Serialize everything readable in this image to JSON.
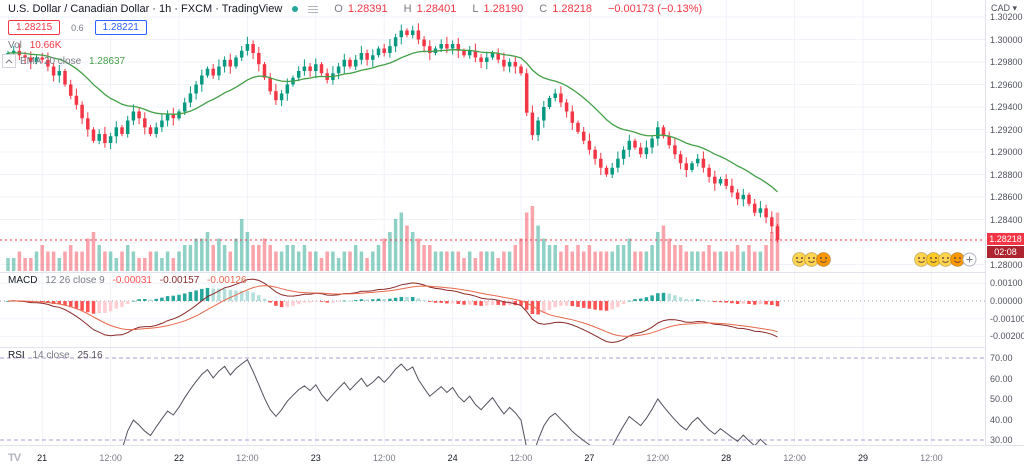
{
  "header": {
    "title": "U.S. Dollar / Canadian Dollar · 1h · FXCM · TradingView",
    "ohlc": {
      "items": [
        {
          "k": "O",
          "v": "1.28391"
        },
        {
          "k": "H",
          "v": "1.28401"
        },
        {
          "k": "L",
          "v": "1.28190"
        },
        {
          "k": "C",
          "v": "1.28218"
        }
      ],
      "change": "−0.00173 (−0.13%)"
    },
    "sell": "1.28215",
    "spread": "0.6",
    "buy": "1.28221",
    "vol_label": "Vol",
    "vol_value": "10.66K",
    "ema_label": "EMA 20 close",
    "ema_value": "1.28637"
  },
  "macd_legend": {
    "label": "MACD",
    "params": "12 26 close 9",
    "hist": "-0.00031",
    "macd": "-0.00157",
    "signal": "-0.00126"
  },
  "rsi_legend": {
    "label": "RSI",
    "params": "14 close",
    "value": "25.16"
  },
  "axis": {
    "currency": "CAD",
    "price_ticks": [
      {
        "p": 1.302,
        "label": "1.30200"
      },
      {
        "p": 1.3,
        "label": "1.30000"
      },
      {
        "p": 1.298,
        "label": "1.29800"
      },
      {
        "p": 1.296,
        "label": "1.29600"
      },
      {
        "p": 1.294,
        "label": "1.29400"
      },
      {
        "p": 1.292,
        "label": "1.29200"
      },
      {
        "p": 1.29,
        "label": "1.29000"
      },
      {
        "p": 1.288,
        "label": "1.28800"
      },
      {
        "p": 1.286,
        "label": "1.28600"
      },
      {
        "p": 1.284,
        "label": "1.28400"
      },
      {
        "p": 1.282,
        "label": ""
      },
      {
        "p": 1.28,
        "label": "1.28000"
      }
    ],
    "price_badge": {
      "value": "1.28218",
      "countdown": "02:08"
    },
    "macd_ticks": [
      {
        "v": 0.001,
        "label": "0.00100"
      },
      {
        "v": 0.0,
        "label": "0.00000"
      },
      {
        "v": -0.001,
        "label": "-0.00100"
      },
      {
        "v": -0.002,
        "label": "-0.00200"
      }
    ],
    "rsi_ticks": [
      {
        "v": 70,
        "label": "70.00"
      },
      {
        "v": 60,
        "label": "60.00"
      },
      {
        "v": 50,
        "label": "50.00"
      },
      {
        "v": 40,
        "label": "40.00"
      },
      {
        "v": 30,
        "label": "30.00"
      }
    ],
    "time_ticks": [
      {
        "label": "21",
        "hour": 6,
        "major": true
      },
      {
        "label": "12:00",
        "hour": 18,
        "major": false
      },
      {
        "label": "22",
        "hour": 30,
        "major": true
      },
      {
        "label": "12:00",
        "hour": 42,
        "major": false
      },
      {
        "label": "23",
        "hour": 54,
        "major": true
      },
      {
        "label": "12:00",
        "hour": 66,
        "major": false
      },
      {
        "label": "24",
        "hour": 78,
        "major": true
      },
      {
        "label": "12:00",
        "hour": 90,
        "major": false
      },
      {
        "label": "27",
        "hour": 102,
        "major": true
      },
      {
        "label": "12:00",
        "hour": 114,
        "major": false
      },
      {
        "label": "28",
        "hour": 126,
        "major": true
      },
      {
        "label": "12:00",
        "hour": 138,
        "major": false
      },
      {
        "label": "29",
        "hour": 150,
        "major": true
      },
      {
        "label": "12:00",
        "hour": 162,
        "major": false
      }
    ]
  },
  "chart_data": {
    "type": "candlestick",
    "symbol": "USD/CAD",
    "interval": "1h",
    "y_axis_range": [
      1.28,
      1.303
    ],
    "first_open": 1.2986,
    "closes": [
      1.2988,
      1.299,
      1.2986,
      1.2984,
      1.298,
      1.2984,
      1.2982,
      1.2976,
      1.2968,
      1.2972,
      1.296,
      1.295,
      1.2942,
      1.293,
      1.292,
      1.291,
      1.2916,
      1.2908,
      1.2914,
      1.2922,
      1.2916,
      1.2928,
      1.2936,
      1.293,
      1.2922,
      1.2916,
      1.2922,
      1.2928,
      1.2934,
      1.293,
      1.2936,
      1.2944,
      1.2952,
      1.296,
      1.2968,
      1.2974,
      1.2968,
      1.2976,
      1.2982,
      1.2976,
      1.2984,
      1.299,
      1.2996,
      1.2988,
      1.2978,
      1.2966,
      1.2954,
      1.2946,
      1.2952,
      1.296,
      1.2966,
      1.2972,
      1.2976,
      1.2972,
      1.2978,
      1.297,
      1.2964,
      1.297,
      1.2976,
      1.2982,
      1.2976,
      1.2982,
      1.2988,
      1.2982,
      1.2986,
      1.2992,
      1.2988,
      1.2994,
      1.3002,
      1.3008,
      1.3004,
      1.3008,
      1.3,
      1.2994,
      1.2988,
      1.2992,
      1.2996,
      1.2992,
      1.2996,
      1.299,
      1.2986,
      1.299,
      1.2984,
      1.298,
      1.2984,
      1.2988,
      1.2982,
      1.2976,
      1.298,
      1.2976,
      1.297,
      1.2935,
      1.2915,
      1.2928,
      1.294,
      1.2948,
      1.2952,
      1.2944,
      1.2936,
      1.2926,
      1.2918,
      1.291,
      1.2902,
      1.2894,
      1.2886,
      1.288,
      1.2886,
      1.2894,
      1.2902,
      1.291,
      1.2904,
      1.2898,
      1.2904,
      1.2912,
      1.2922,
      1.2914,
      1.2906,
      1.2898,
      1.289,
      1.2884,
      1.289,
      1.2894,
      1.2886,
      1.2878,
      1.2872,
      1.2876,
      1.287,
      1.2864,
      1.2858,
      1.2862,
      1.2854,
      1.2846,
      1.285,
      1.2842,
      1.2834,
      1.28218
    ],
    "volumes": [
      2,
      2,
      3,
      2,
      2,
      3,
      4,
      3,
      3,
      2,
      3,
      4,
      3,
      3,
      5,
      6,
      4,
      3,
      3,
      2,
      3,
      4,
      3,
      2,
      2,
      3,
      3,
      2,
      3,
      2,
      3,
      4,
      4,
      5,
      5,
      6,
      4,
      5,
      4,
      3,
      5,
      8,
      6,
      4,
      4,
      5,
      4,
      3,
      3,
      4,
      4,
      3,
      4,
      3,
      3,
      2,
      3,
      3,
      2,
      3,
      3,
      4,
      3,
      2,
      3,
      4,
      5,
      6,
      8,
      9,
      7,
      6,
      5,
      4,
      4,
      3,
      3,
      3,
      3,
      3,
      2,
      3,
      2,
      3,
      3,
      3,
      2,
      3,
      3,
      4,
      5,
      9,
      10,
      7,
      5,
      4,
      4,
      3,
      4,
      3,
      4,
      3,
      4,
      3,
      3,
      3,
      3,
      4,
      4,
      5,
      3,
      3,
      3,
      4,
      6,
      7,
      5,
      4,
      4,
      3,
      3,
      3,
      3,
      4,
      3,
      3,
      3,
      3,
      4,
      3,
      4,
      3,
      3,
      4,
      6,
      9
    ],
    "last_candle": {
      "o": 1.28391,
      "h": 1.28401,
      "l": 1.2819,
      "c": 1.28218
    },
    "volume_last": "10.66K",
    "indicators": {
      "ema": {
        "period": 20,
        "value": 1.28637
      },
      "macd": {
        "fast": 12,
        "slow": 26,
        "signal_period": 9,
        "hist": -0.00031,
        "macd": -0.00157,
        "signal": -0.00126
      },
      "rsi": {
        "period": 14,
        "value": 25.16,
        "bands": [
          70,
          30
        ]
      }
    }
  },
  "reactions": {
    "cluster1": [
      "#FFD54F",
      "#FFD54F",
      "#FF9800"
    ],
    "cluster2": [
      "#FFD54F",
      "#FFCA28",
      "#FFD54F",
      "#FF9800"
    ]
  },
  "brand_logo": "TV",
  "colors": {
    "up": "#089981",
    "down": "#F23645",
    "ema": "#43A047",
    "vol_up": "rgba(8,153,129,0.45)",
    "vol_down": "rgba(242,54,69,0.45)",
    "macd_line": "#8A2A2A",
    "signal_line": "#E8684A",
    "hist_pos": "#26A69A",
    "hist_pos_weak": "#B2DFDB",
    "hist_neg": "#FF5252",
    "hist_neg_weak": "#FFCDD2",
    "rsi_line": "#55505E",
    "rsi_band": "#B09CD0",
    "grid": "#F0F3FA",
    "zero_line": "#9598A1",
    "sep": "#E0E3EB",
    "red": "#F23645",
    "blue": "#2962FF",
    "muted": "#787B86",
    "text": "#131722"
  }
}
